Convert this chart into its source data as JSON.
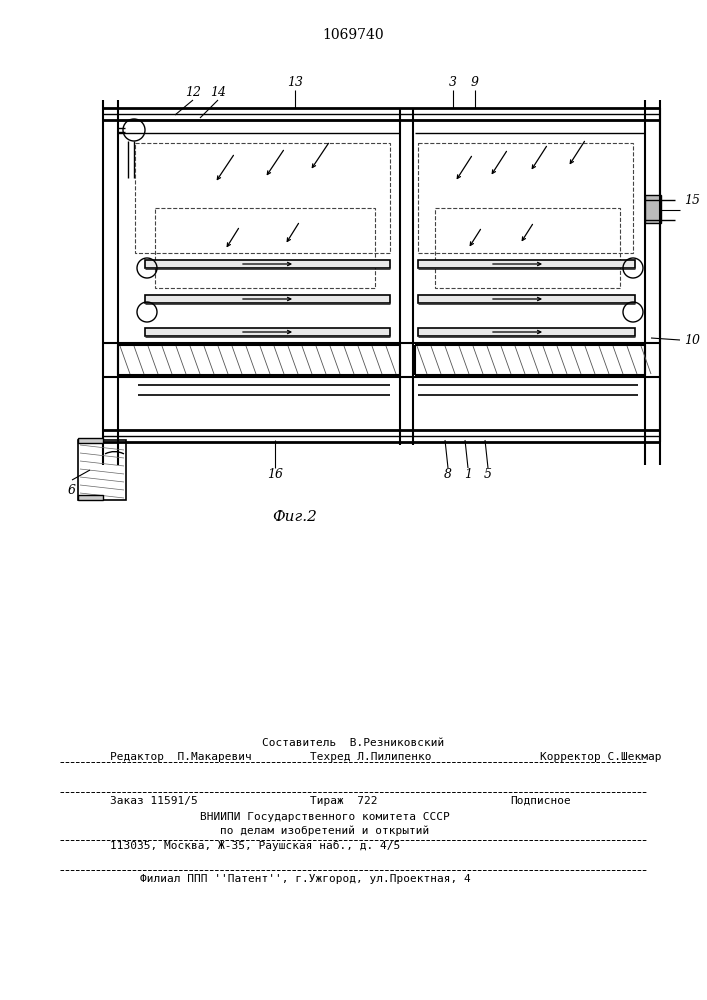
{
  "patent_number": "1069740",
  "fig_label": "Фиг.2",
  "bg_color": "#ffffff",
  "line_color": "#000000",
  "footer": {
    "line1_center": "Составитель  В.Резниковский",
    "line2_left": "Редактор  П.Макаревич",
    "line2_center": "Техред Л.Пилипенко",
    "line2_right": "Корректор С.Шекмар",
    "line3_left": "Заказ 11591/5",
    "line3_center": "Тираж  722",
    "line3_right": "Подписное",
    "line4": "ВНИИПИ Государственного комитета СССР",
    "line5": "по делам изобретений и открытий",
    "line6": "113035, Москва, Ж-35, Раушская наб., д. 4/5",
    "line7": "Филиал ППП ''Патент'', г.Ужгород, ул.Проектная, 4"
  }
}
